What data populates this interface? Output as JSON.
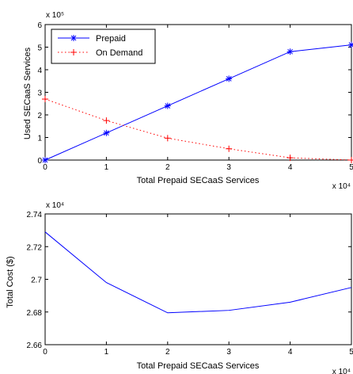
{
  "chart_data": [
    {
      "type": "line",
      "title": "",
      "xlabel": "Total Prepaid SECaaS Services",
      "ylabel": "Used SECaaS Services",
      "x_multiplier": "x 10⁴",
      "y_multiplier": "x 10⁵",
      "x": [
        0,
        1,
        2,
        3,
        4,
        5
      ],
      "xlim": [
        0,
        5
      ],
      "ylim": [
        0,
        6
      ],
      "x_ticks": [
        "0",
        "1",
        "2",
        "3",
        "4",
        "5"
      ],
      "y_ticks": [
        "0",
        "1",
        "2",
        "3",
        "4",
        "5",
        "6"
      ],
      "grid": false,
      "legend_position": "top-left",
      "series": [
        {
          "name": "Prepaid",
          "values": [
            0,
            1.2,
            2.4,
            3.6,
            4.8,
            5.1
          ],
          "color": "#0000ff",
          "marker": "star",
          "line_style": "solid"
        },
        {
          "name": "On Demand",
          "values": [
            2.7,
            1.75,
            0.97,
            0.5,
            0.1,
            0.0
          ],
          "color": "#ff0000",
          "marker": "plus",
          "line_style": "dotted"
        }
      ]
    },
    {
      "type": "line",
      "title": "",
      "xlabel": "Total Prepaid SECaaS Services",
      "ylabel": "Total Cost ($)",
      "x_multiplier": "x 10⁴",
      "y_multiplier": "x 10⁴",
      "x": [
        0,
        1,
        2,
        3,
        4,
        5
      ],
      "xlim": [
        0,
        5
      ],
      "ylim": [
        2.66,
        2.74
      ],
      "x_ticks": [
        "0",
        "1",
        "2",
        "3",
        "4",
        "5"
      ],
      "y_ticks": [
        "2.66",
        "2.68",
        "2.7",
        "2.72",
        "2.74"
      ],
      "grid": false,
      "series": [
        {
          "values": [
            2.729,
            2.698,
            2.6795,
            2.681,
            2.686,
            2.695
          ],
          "color": "#0000ff",
          "marker": "none",
          "line_style": "solid"
        }
      ]
    }
  ]
}
